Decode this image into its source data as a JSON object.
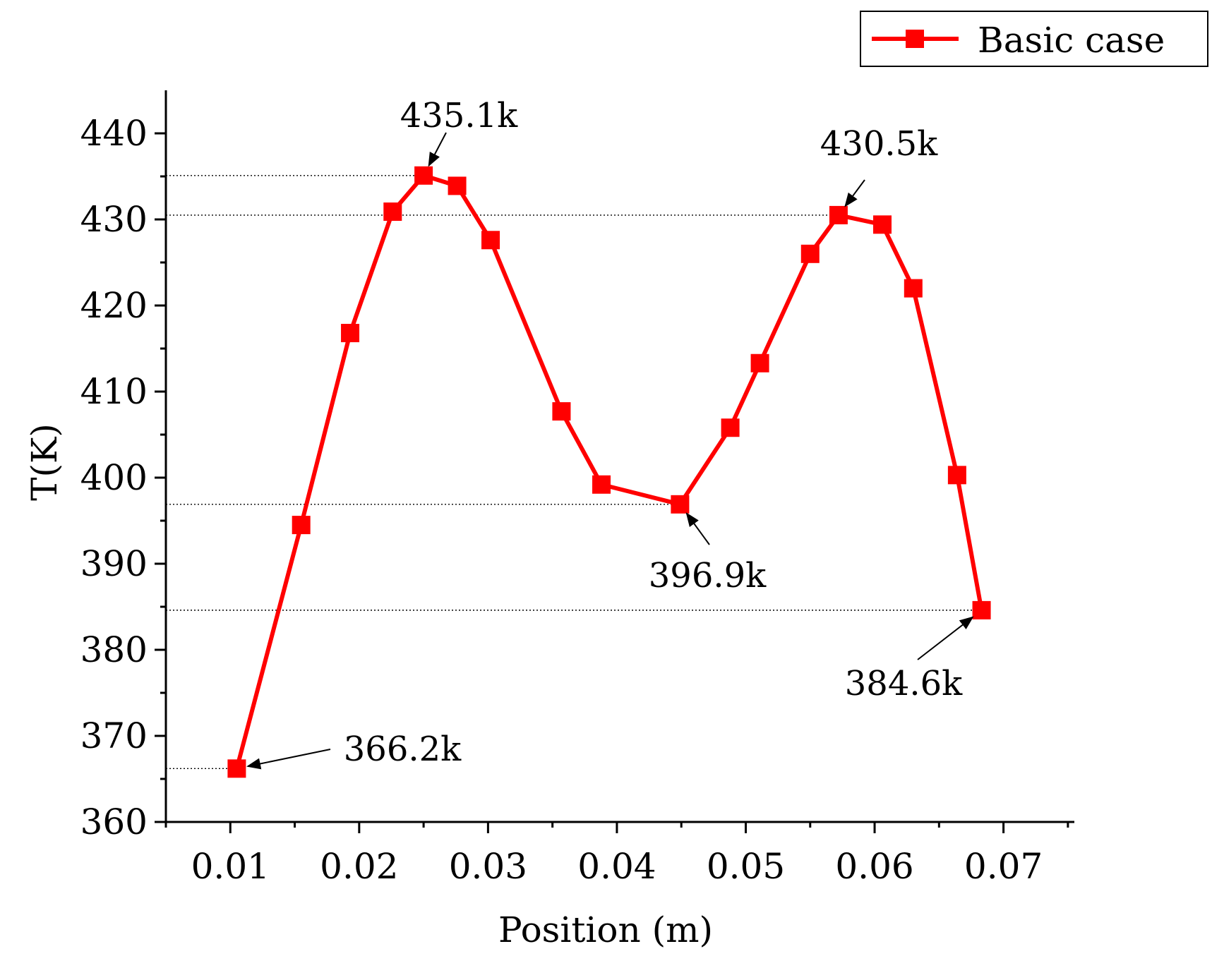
{
  "chart_data": {
    "type": "line",
    "xlabel": "Position (m)",
    "ylabel": "T(K)",
    "xlim": [
      0.005,
      0.0755
    ],
    "ylim": [
      360,
      445
    ],
    "x_ticks": [
      0.01,
      0.02,
      0.03,
      0.04,
      0.05,
      0.06,
      0.07
    ],
    "x_tick_labels": [
      "0.01",
      "0.02",
      "0.03",
      "0.04",
      "0.05",
      "0.06",
      "0.07"
    ],
    "y_ticks": [
      360,
      370,
      380,
      390,
      400,
      410,
      420,
      430,
      440
    ],
    "y_tick_labels": [
      "360",
      "370",
      "380",
      "390",
      "400",
      "410",
      "420",
      "430",
      "440"
    ],
    "grid": false,
    "legend_position": "top-right",
    "series": [
      {
        "name": "Basic case",
        "color": "#ff0000",
        "marker": "square",
        "x": [
          0.0105,
          0.0155,
          0.0193,
          0.0226,
          0.025,
          0.0276,
          0.0302,
          0.0357,
          0.0388,
          0.0449,
          0.0488,
          0.0511,
          0.055,
          0.0572,
          0.0606,
          0.063,
          0.0664,
          0.0683
        ],
        "y": [
          366.2,
          394.5,
          416.8,
          430.9,
          435.1,
          433.9,
          427.6,
          407.7,
          399.2,
          396.9,
          405.8,
          413.3,
          426.0,
          430.5,
          429.4,
          422.0,
          400.3,
          384.6
        ]
      }
    ],
    "reference_lines": [
      435.1,
      430.5,
      396.9,
      384.6,
      366.2
    ],
    "annotations": [
      {
        "text": "435.1k",
        "x": 0.025,
        "y": 435.1
      },
      {
        "text": "430.5k",
        "x": 0.0572,
        "y": 430.5
      },
      {
        "text": "396.9k",
        "x": 0.0449,
        "y": 396.9
      },
      {
        "text": "384.6k",
        "x": 0.0683,
        "y": 384.6
      },
      {
        "text": "366.2k",
        "x": 0.0105,
        "y": 366.2
      }
    ]
  }
}
